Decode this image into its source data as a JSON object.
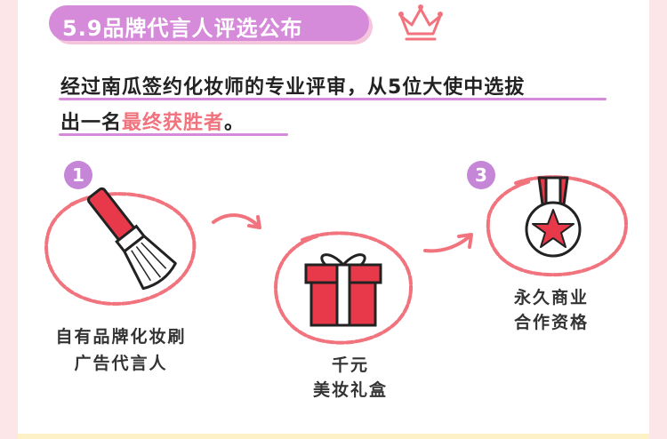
{
  "header": {
    "title": "5.9品牌代言人评选公布"
  },
  "intro": {
    "line1": "经过南瓜签约化妆师的专业评审，从5位大使中选拔",
    "line2_prefix": "出一名",
    "line2_highlight": "最终获胜者",
    "line2_suffix": "。"
  },
  "steps": [
    {
      "number": "1",
      "label_line1": "自有品牌化妆刷",
      "label_line2": "广告代言人"
    },
    {
      "number": "",
      "label_line1": "千元",
      "label_line2": "美妆礼盒"
    },
    {
      "number": "3",
      "label_line1": "永久商业",
      "label_line2": "合作资格"
    }
  ],
  "icons": {
    "crown": "crown-icon",
    "brush": "makeup-brush-icon",
    "gift": "gift-box-icon",
    "medal": "medal-icon"
  },
  "colors": {
    "accent_purple": "#d58bd9",
    "accent_pink": "#f0737d",
    "red": "#e8394a",
    "background": "#fde6e8"
  }
}
